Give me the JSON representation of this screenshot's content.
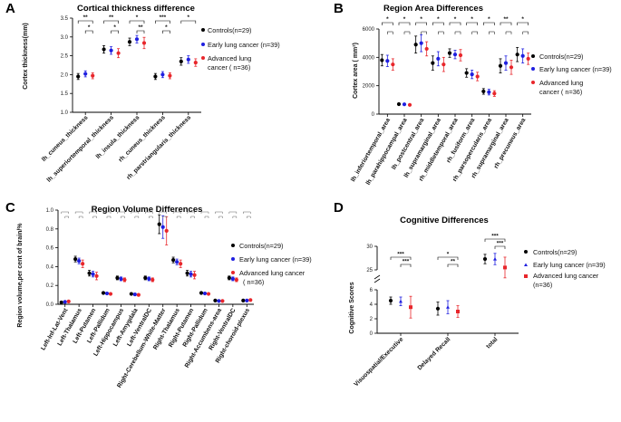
{
  "colors": {
    "controls": "#000000",
    "early": "#1f1fe0",
    "advanced": "#e8262b"
  },
  "chart_data": [
    {
      "type": "scatter",
      "panel_label": "A",
      "title": "Cortical thickness difference",
      "ylabel": "Cortex thickness(mm)",
      "xlabel": "",
      "ylim": [
        1.0,
        3.5
      ],
      "yticks": [
        "1.0",
        "1.5",
        "2.0",
        "2.5",
        "3.0",
        "3.5"
      ],
      "legend": [
        "Controls(n=29)",
        "Early lung cancer (n=39)",
        "Advanced lung",
        "cancer ( n=36)"
      ],
      "categories": [
        "lh_cuneus_thickness",
        "lh_superiortemporal_thickness",
        "lh_insula_thickness",
        "rh_cuneus_thickness",
        "rh_parstriangularis_thickness"
      ],
      "series": [
        {
          "name": "Controls(n=29)",
          "values": [
            1.95,
            2.67,
            2.87,
            1.95,
            2.35
          ],
          "err": [
            0.08,
            0.1,
            0.1,
            0.08,
            0.1
          ]
        },
        {
          "name": "Early lung cancer (n=39)",
          "values": [
            2.02,
            2.64,
            2.94,
            2.0,
            2.4
          ],
          "err": [
            0.08,
            0.1,
            0.1,
            0.08,
            0.1
          ]
        },
        {
          "name": "Advanced lung cancer ( n=36)",
          "values": [
            1.97,
            2.57,
            2.84,
            1.97,
            2.32
          ],
          "err": [
            0.08,
            0.12,
            0.15,
            0.08,
            0.1
          ]
        }
      ],
      "significance": [
        {
          "left": 0,
          "mid": 1,
          "right": 2,
          "top": "**",
          "bottom": "*"
        },
        {
          "left": 0,
          "mid": 1,
          "right": 2,
          "top": "**",
          "bottom": "*"
        },
        {
          "left": 0,
          "mid": 1,
          "right": 2,
          "top": "*",
          "bottom": "**"
        },
        {
          "left": 0,
          "mid": 1,
          "right": 2,
          "top": "***",
          "bottom": "*"
        },
        {
          "left": 0,
          "mid": 1,
          "right": 2,
          "top": "*",
          "bottom": ""
        }
      ]
    },
    {
      "type": "scatter",
      "panel_label": "B",
      "title": "Region Area Differences",
      "ylabel": "Cortex area ( mm²)",
      "xlabel": "",
      "ylim": [
        0,
        6000
      ],
      "yticks": [
        "0",
        "2000",
        "4000",
        "6000"
      ],
      "legend": [
        "Controls(n=29)",
        "Early lung cancer (n=39)",
        "Advanced lung",
        "cancer ( n=36)"
      ],
      "categories": [
        "lh_inferiortemporal_area",
        "lh_parahippocampal_area",
        "lh_postcentral_area",
        "lh_supramarginal_area",
        "rh_middletemporal_area",
        "rh_fusiform_area",
        "rh_parsopercularis_area",
        "rh_supramarginal_area",
        "rh_precuneus_area"
      ],
      "series": [
        {
          "name": "Controls(n=29)",
          "values": [
            3800,
            700,
            4900,
            3600,
            4300,
            2900,
            1600,
            3400,
            4200
          ],
          "err": [
            400,
            60,
            600,
            500,
            300,
            300,
            200,
            500,
            500
          ]
        },
        {
          "name": "Early lung cancer (n=39)",
          "values": [
            3750,
            690,
            5000,
            3900,
            4200,
            2800,
            1550,
            3600,
            4100
          ],
          "err": [
            400,
            60,
            600,
            500,
            300,
            300,
            200,
            500,
            500
          ]
        },
        {
          "name": "Advanced lung cancer ( n=36)",
          "values": [
            3500,
            650,
            4600,
            3500,
            4150,
            2650,
            1450,
            3300,
            3900
          ],
          "err": [
            400,
            60,
            500,
            500,
            400,
            300,
            200,
            500,
            400
          ]
        }
      ],
      "significance": [
        "*",
        "*",
        "*",
        "*",
        "*",
        "*",
        "*",
        "**",
        "*"
      ]
    },
    {
      "type": "scatter",
      "panel_label": "C",
      "title": "Region Volume Differences",
      "ylabel": "Region volume,per cent of brain/%",
      "xlabel": "",
      "ylim": [
        0.0,
        1.0
      ],
      "yticks": [
        "0.0",
        "0.2",
        "0.4",
        "0.6",
        "0.8",
        "1.0"
      ],
      "legend": [
        "Controls(n=29)",
        "Early lung cancer (n=39)",
        "Advanced lung cancer",
        "( n=36)"
      ],
      "categories": [
        "Left-Inf-Lat-Vent",
        "Left-Thalamus",
        "Left-Putamen",
        "Left-Pallidum",
        "Left-Hippocampus",
        "Left-Amygdala",
        "Left-VentralDC",
        "Right-Cerebellum-White-Matter",
        "Right-Thalamus",
        "Right-Putamen",
        "Right-Pallidum",
        "Right-Accumbens-area",
        "Right-VentralDC",
        "Right-choroid-plexus"
      ],
      "series": [
        {
          "name": "Controls(n=29)",
          "values": [
            0.02,
            0.48,
            0.33,
            0.12,
            0.28,
            0.11,
            0.28,
            0.85,
            0.47,
            0.33,
            0.12,
            0.04,
            0.28,
            0.04
          ],
          "err": [
            0.01,
            0.03,
            0.03,
            0.01,
            0.02,
            0.01,
            0.02,
            0.1,
            0.03,
            0.03,
            0.01,
            0.005,
            0.02,
            0.01
          ]
        },
        {
          "name": "Early lung cancer (n=39)",
          "values": [
            0.025,
            0.46,
            0.32,
            0.115,
            0.27,
            0.105,
            0.27,
            0.82,
            0.45,
            0.32,
            0.115,
            0.035,
            0.27,
            0.04
          ],
          "err": [
            0.01,
            0.03,
            0.03,
            0.01,
            0.02,
            0.01,
            0.02,
            0.12,
            0.03,
            0.03,
            0.01,
            0.005,
            0.02,
            0.01
          ]
        },
        {
          "name": "Advanced lung cancer ( n=36)",
          "values": [
            0.03,
            0.43,
            0.3,
            0.11,
            0.26,
            0.1,
            0.26,
            0.78,
            0.43,
            0.31,
            0.11,
            0.035,
            0.26,
            0.045
          ],
          "err": [
            0.01,
            0.04,
            0.04,
            0.01,
            0.02,
            0.01,
            0.02,
            0.15,
            0.04,
            0.04,
            0.01,
            0.005,
            0.02,
            0.01
          ]
        }
      ]
    },
    {
      "type": "scatter",
      "panel_label": "D",
      "title": "Cognitive Differences",
      "ylabel": "Cognitive Scores",
      "xlabel": "",
      "ylim_lower": [
        0,
        6
      ],
      "ylim_upper": [
        25,
        30
      ],
      "yticks_lower": [
        "0",
        "2",
        "4",
        "6"
      ],
      "yticks_upper": [
        "25",
        "30"
      ],
      "legend": [
        "Controls(n=29)",
        "Early lung cancer (n=39)",
        "Advanced lung cancer",
        "(n=36)"
      ],
      "categories": [
        "Visuospatial/Executive",
        "Delayed Recall",
        "total"
      ],
      "series": [
        {
          "name": "Controls(n=29)",
          "values": [
            4.5,
            3.4,
            27.3
          ],
          "err": [
            0.5,
            0.9,
            1.0
          ]
        },
        {
          "name": "Early lung cancer (n=39)",
          "values": [
            4.4,
            3.6,
            27.3
          ],
          "err": [
            0.6,
            0.9,
            1.2
          ]
        },
        {
          "name": "Advanced lung cancer (n=36)",
          "values": [
            3.6,
            3.0,
            25.5
          ],
          "err": [
            1.5,
            0.8,
            2.2
          ]
        }
      ],
      "significance": [
        {
          "top": "***",
          "bottom": "***"
        },
        {
          "top": "*",
          "bottom": "**"
        },
        {
          "top": "***",
          "bottom": "***"
        }
      ]
    }
  ]
}
